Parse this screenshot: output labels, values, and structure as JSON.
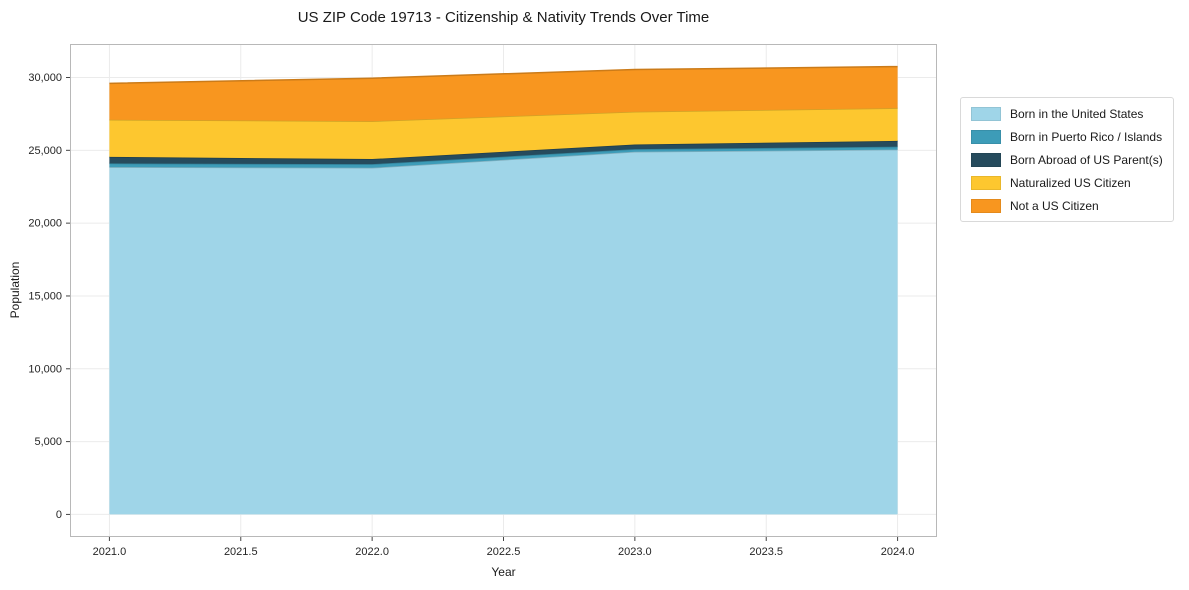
{
  "figure": {
    "title": "US ZIP Code 19713 - Citizenship & Nativity Trends Over Time",
    "xlabel": "Year",
    "ylabel": "Population"
  },
  "chart_data": {
    "type": "area",
    "stacked": true,
    "title": "US ZIP Code 19713 - Citizenship & Nativity Trends Over Time",
    "xlabel": "Year",
    "ylabel": "Population",
    "x": [
      2021,
      2022,
      2023,
      2024
    ],
    "series": [
      {
        "name": "Born in the United States",
        "color": "#9fd5e8",
        "values": [
          23850,
          23800,
          24900,
          25050
        ]
      },
      {
        "name": "Born in Puerto Rico / Islands",
        "color": "#3d9cb8",
        "values": [
          250,
          250,
          180,
          200
        ]
      },
      {
        "name": "Born Abroad of US Parent(s)",
        "color": "#264b5d",
        "values": [
          450,
          350,
          320,
          400
        ]
      },
      {
        "name": "Naturalized US Citizen",
        "color": "#fdc72f",
        "values": [
          2550,
          2600,
          2250,
          2250
        ]
      },
      {
        "name": "Not a US Citizen",
        "color": "#f8961f",
        "values": [
          2500,
          2950,
          2900,
          2850
        ]
      }
    ],
    "stack_totals": [
      29600,
      29950,
      30550,
      30750
    ],
    "xlim": [
      2020.85,
      2024.15
    ],
    "ylim": [
      -1550,
      32300
    ],
    "xtick_values": [
      2021,
      2021.5,
      2022,
      2022.5,
      2023,
      2023.5,
      2024
    ],
    "xtick_labels": [
      "2021.0",
      "2021.5",
      "2022.0",
      "2022.5",
      "2023.0",
      "2023.5",
      "2024.0"
    ],
    "ytick_values": [
      0,
      5000,
      10000,
      15000,
      20000,
      25000,
      30000
    ],
    "ytick_labels": [
      "0",
      "5,000",
      "10,000",
      "15,000",
      "20,000",
      "25,000",
      "30,000"
    ],
    "grid": true,
    "legend_position": "right",
    "colors": {
      "frame": "#b8b8b8",
      "gridline": "#ebebeb",
      "tick": "#444444",
      "tick_label": "#262626"
    }
  }
}
